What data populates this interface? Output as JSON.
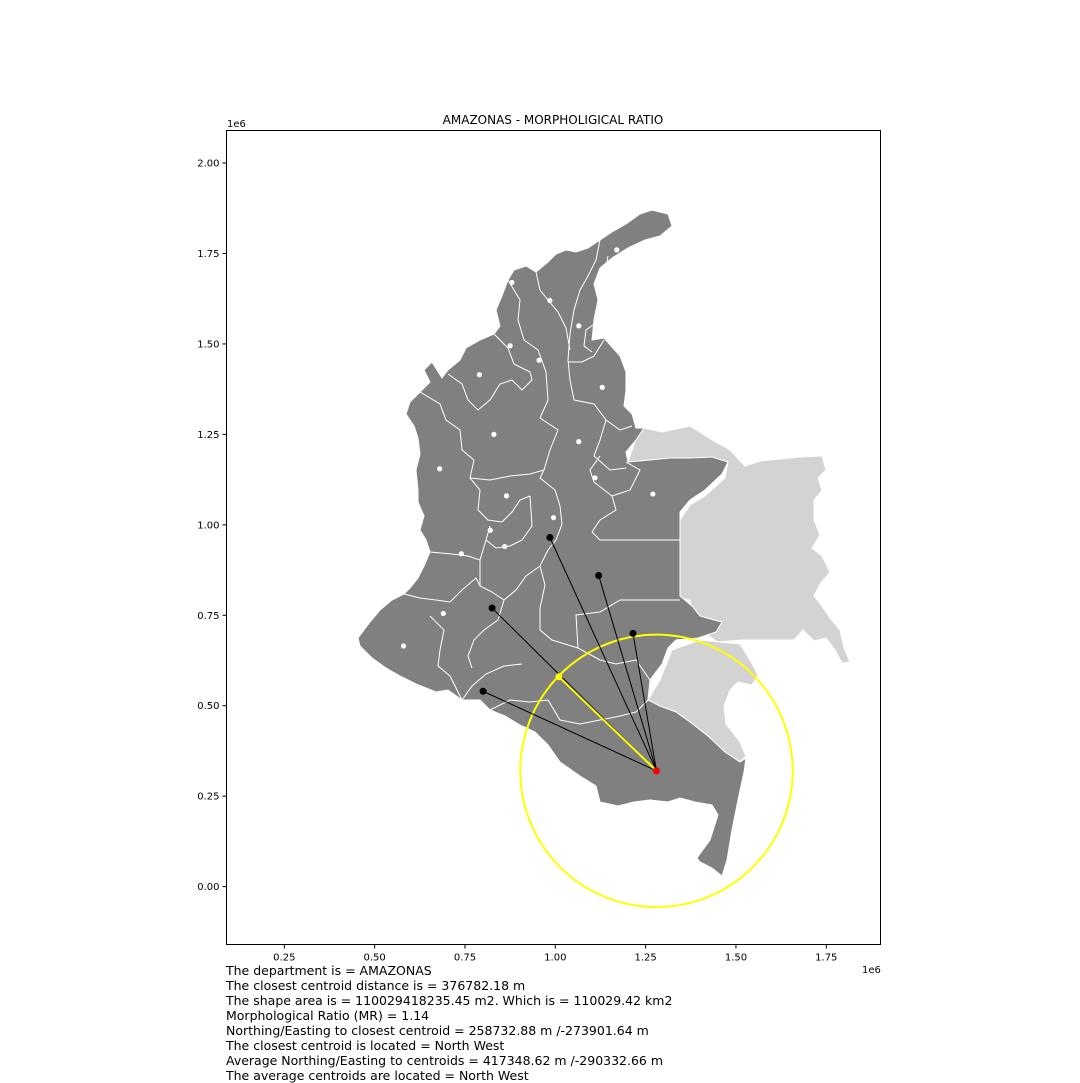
{
  "plot": {
    "title": "AMAZONAS - MORPHOLIGICAL RATIO",
    "x_offset_label": "1e6",
    "y_offset_label": "1e6",
    "x_ticks": [
      {
        "value": 0.25,
        "label": "0.25"
      },
      {
        "value": 0.5,
        "label": "0.50"
      },
      {
        "value": 0.75,
        "label": "0.75"
      },
      {
        "value": 1.0,
        "label": "1.00"
      },
      {
        "value": 1.25,
        "label": "1.25"
      },
      {
        "value": 1.5,
        "label": "1.50"
      },
      {
        "value": 1.75,
        "label": "1.75"
      }
    ],
    "y_ticks": [
      {
        "value": 0.0,
        "label": "0.00"
      },
      {
        "value": 0.25,
        "label": "0.25"
      },
      {
        "value": 0.5,
        "label": "0.50"
      },
      {
        "value": 0.75,
        "label": "0.75"
      },
      {
        "value": 1.0,
        "label": "1.00"
      },
      {
        "value": 1.25,
        "label": "1.25"
      },
      {
        "value": 1.5,
        "label": "1.50"
      },
      {
        "value": 1.75,
        "label": "1.75"
      },
      {
        "value": 2.0,
        "label": "2.00"
      }
    ],
    "xlim": [
      0.09,
      1.9
    ],
    "ylim": [
      -0.16,
      2.09
    ],
    "colors": {
      "departments": "#808080",
      "neighbors": "#d3d3d3",
      "borders": "#ffffff",
      "target_centroid": "#ff0000",
      "closest_centroid": "#ffff00",
      "neighbor_centroid": "#000000",
      "other_centroid": "#ffffff",
      "circle": "#ffff00",
      "lines": "#000000"
    }
  },
  "chart_data": {
    "type": "scatter",
    "units": "1e6 m",
    "target_centroid": {
      "x": 1.28,
      "y": 0.32
    },
    "closest_centroid": {
      "x": 1.01,
      "y": 0.58
    },
    "circle_radius": 0.377,
    "neighbor_centroids": [
      {
        "x": 0.985,
        "y": 0.965
      },
      {
        "x": 1.12,
        "y": 0.86
      },
      {
        "x": 1.215,
        "y": 0.7
      },
      {
        "x": 0.825,
        "y": 0.77
      },
      {
        "x": 0.8,
        "y": 0.54
      }
    ],
    "other_centroids": [
      {
        "x": 1.17,
        "y": 1.76
      },
      {
        "x": 0.88,
        "y": 1.67
      },
      {
        "x": 0.985,
        "y": 1.62
      },
      {
        "x": 1.065,
        "y": 1.55
      },
      {
        "x": 0.875,
        "y": 1.495
      },
      {
        "x": 0.955,
        "y": 1.455
      },
      {
        "x": 0.79,
        "y": 1.415
      },
      {
        "x": 1.13,
        "y": 1.38
      },
      {
        "x": 0.83,
        "y": 1.25
      },
      {
        "x": 1.065,
        "y": 1.23
      },
      {
        "x": 0.68,
        "y": 1.155
      },
      {
        "x": 1.11,
        "y": 1.13
      },
      {
        "x": 1.27,
        "y": 1.085
      },
      {
        "x": 0.865,
        "y": 1.08
      },
      {
        "x": 0.995,
        "y": 1.02
      },
      {
        "x": 0.82,
        "y": 0.985
      },
      {
        "x": 0.86,
        "y": 0.94
      },
      {
        "x": 0.74,
        "y": 0.92
      },
      {
        "x": 0.69,
        "y": 0.755
      },
      {
        "x": 0.58,
        "y": 0.665
      }
    ]
  },
  "info": {
    "lines": [
      "The department is = AMAZONAS",
      "The closest centroid distance is = 376782.18 m",
      "The shape area is = 110029418235.45 m2. Which is = 110029.42 km2",
      "Morphological Ratio (MR) = 1.14",
      "Northing/Easting to closest centroid = 258732.88 m /-273901.64 m",
      "The closest centroid is located = North West",
      "Average Northing/Easting to centroids = 417348.62 m /-290332.66 m",
      "The average centroids are located = North West"
    ]
  }
}
